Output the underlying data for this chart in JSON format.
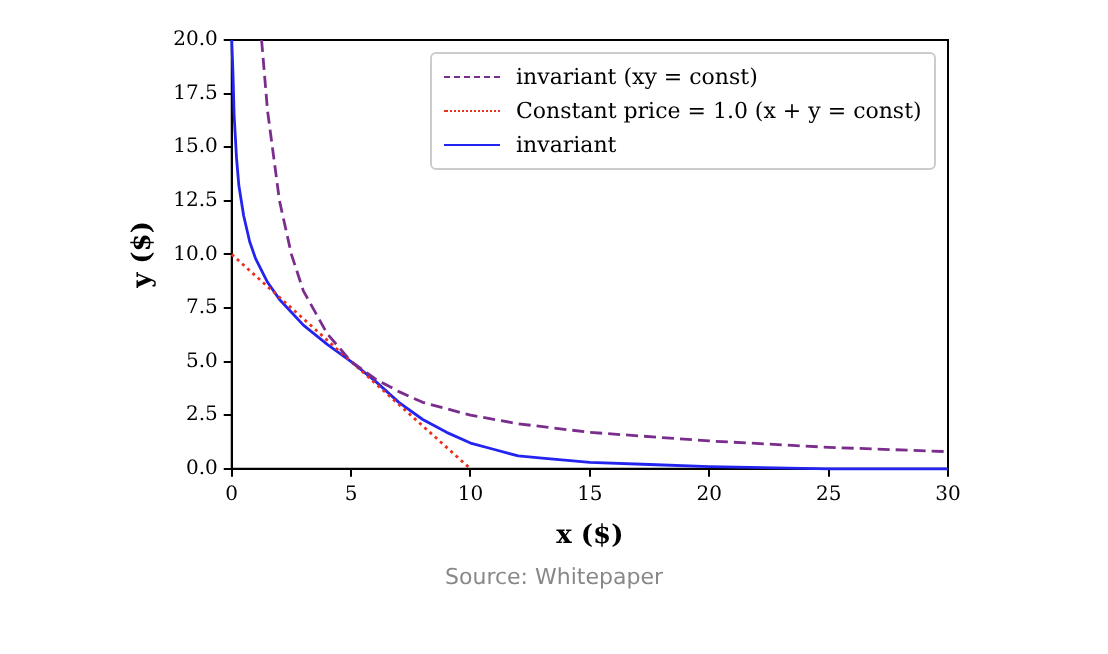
{
  "chart_data": {
    "type": "line",
    "xlabel": "x ($)",
    "ylabel": "y ($)",
    "xlim": [
      0,
      30
    ],
    "ylim": [
      0,
      20
    ],
    "xticks": [
      0,
      5,
      10,
      15,
      20,
      25,
      30
    ],
    "yticks": [
      {
        "value": 0,
        "label": "0.0"
      },
      {
        "value": 2.5,
        "label": "2.5"
      },
      {
        "value": 5,
        "label": "5.0"
      },
      {
        "value": 7.5,
        "label": "7.5"
      },
      {
        "value": 10,
        "label": "10.0"
      },
      {
        "value": 12.5,
        "label": "12.5"
      },
      {
        "value": 15,
        "label": "15.0"
      },
      {
        "value": 17.5,
        "label": "17.5"
      },
      {
        "value": 20,
        "label": "20.0"
      }
    ],
    "grid": false,
    "legend": "top right",
    "marker": "none",
    "series": [
      {
        "name": "invariant (xy = const)",
        "color": "#7b2d8e",
        "line_style": "dashed",
        "x": [
          1.25,
          1.5,
          2,
          2.5,
          3,
          4,
          5,
          6,
          7,
          8,
          10,
          12,
          15,
          20,
          25,
          30
        ],
        "values": [
          20,
          16.7,
          12.5,
          10,
          8.3,
          6.3,
          5,
          4.2,
          3.6,
          3.1,
          2.5,
          2.1,
          1.7,
          1.3,
          1,
          0.8
        ]
      },
      {
        "name": "Constant price = 1.0 (x + y = const)",
        "color": "#e8301c",
        "line_style": "dotted",
        "x": [
          0,
          10
        ],
        "values": [
          10,
          0
        ]
      },
      {
        "name": "invariant",
        "color": "#2424f0",
        "line_style": "solid",
        "x": [
          0,
          0.05,
          0.1,
          0.2,
          0.3,
          0.5,
          0.75,
          1,
          1.5,
          2,
          2.5,
          3,
          4,
          5,
          6,
          7,
          8,
          9,
          10,
          11,
          12,
          13,
          15,
          17.5,
          20,
          25,
          30
        ],
        "values": [
          20,
          18.5,
          16.5,
          14.5,
          13.2,
          11.8,
          10.6,
          9.8,
          8.7,
          7.9,
          7.3,
          6.7,
          5.8,
          5,
          4.1,
          3.1,
          2.3,
          1.7,
          1.2,
          0.9,
          0.6,
          0.5,
          0.3,
          0.2,
          0.1,
          0,
          0
        ]
      }
    ],
    "annotations": [
      "Source: Whitepaper"
    ]
  }
}
